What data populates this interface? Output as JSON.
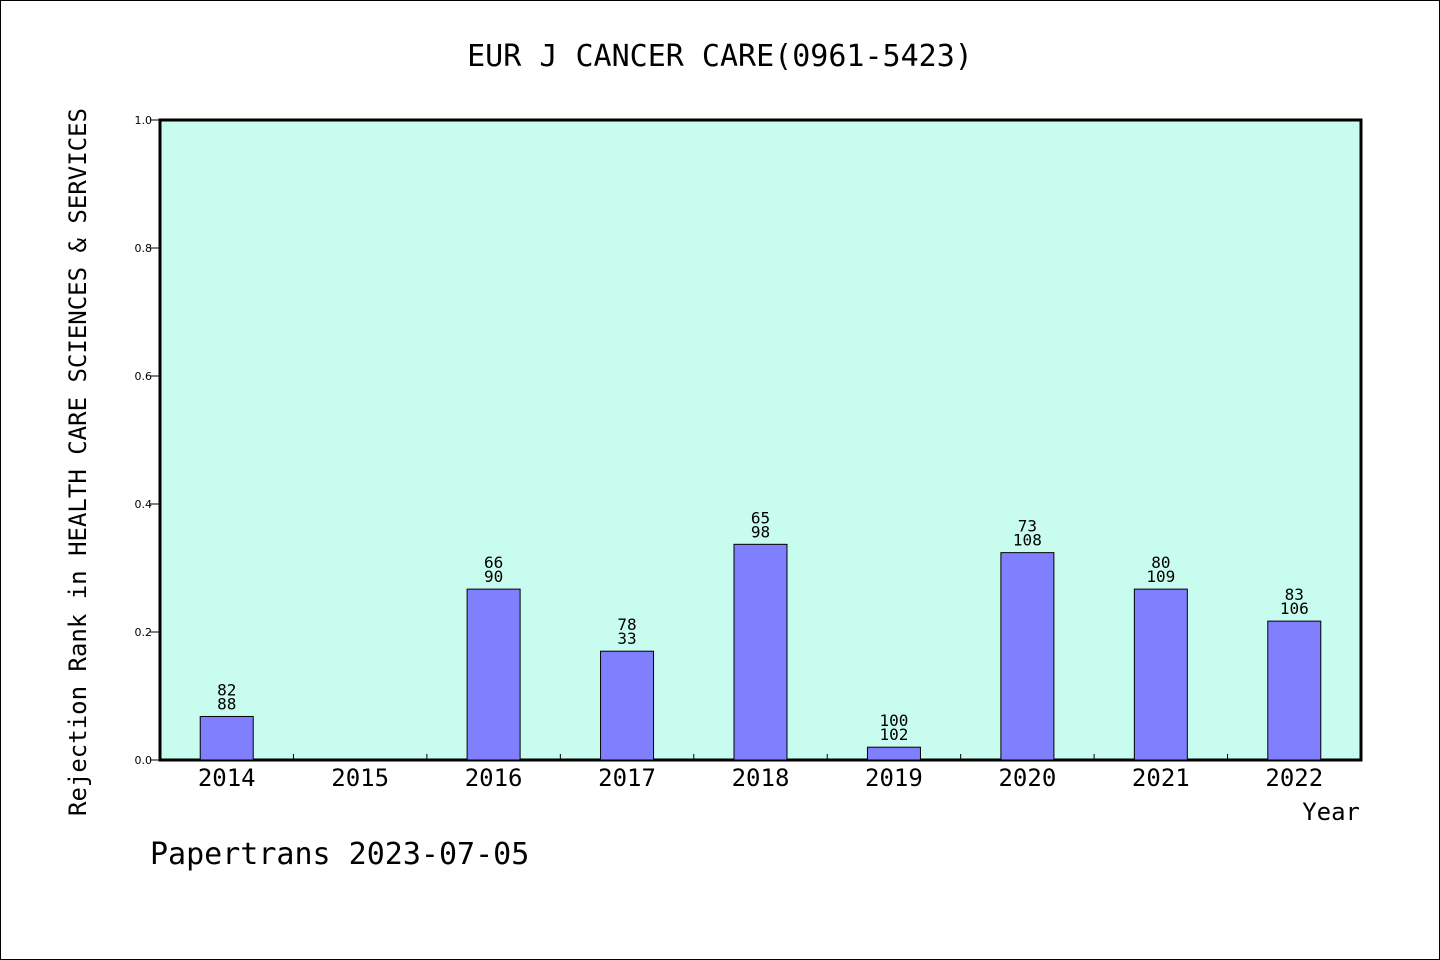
{
  "chart_data": {
    "type": "bar",
    "title": "EUR J CANCER CARE(0961-5423)",
    "xlabel": "Year",
    "ylabel": "Rejection Rank in HEALTH CARE SCIENCES & SERVICES",
    "ylim": [
      0,
      1.0
    ],
    "yticks": [
      "0.0",
      "0.2",
      "0.4",
      "0.6",
      "0.8",
      "1.0"
    ],
    "categories": [
      "2014",
      "2015",
      "2016",
      "2017",
      "2018",
      "2019",
      "2020",
      "2021",
      "2022"
    ],
    "values": [
      0.068,
      null,
      0.267,
      0.17,
      0.337,
      0.02,
      0.324,
      0.267,
      0.217
    ],
    "labels": [
      [
        "82",
        "88"
      ],
      null,
      [
        "66",
        "90"
      ],
      [
        "78",
        "33"
      ],
      [
        "65",
        "98"
      ],
      [
        "100",
        "102"
      ],
      [
        "73",
        "108"
      ],
      [
        "80",
        "109"
      ],
      [
        "83",
        "106"
      ]
    ],
    "grid": false,
    "colors": {
      "plot_bg": "#c8fcef",
      "bar": "#8080ff",
      "axis": "#000000"
    }
  },
  "footer": {
    "text": "Papertrans 2023-07-05"
  }
}
